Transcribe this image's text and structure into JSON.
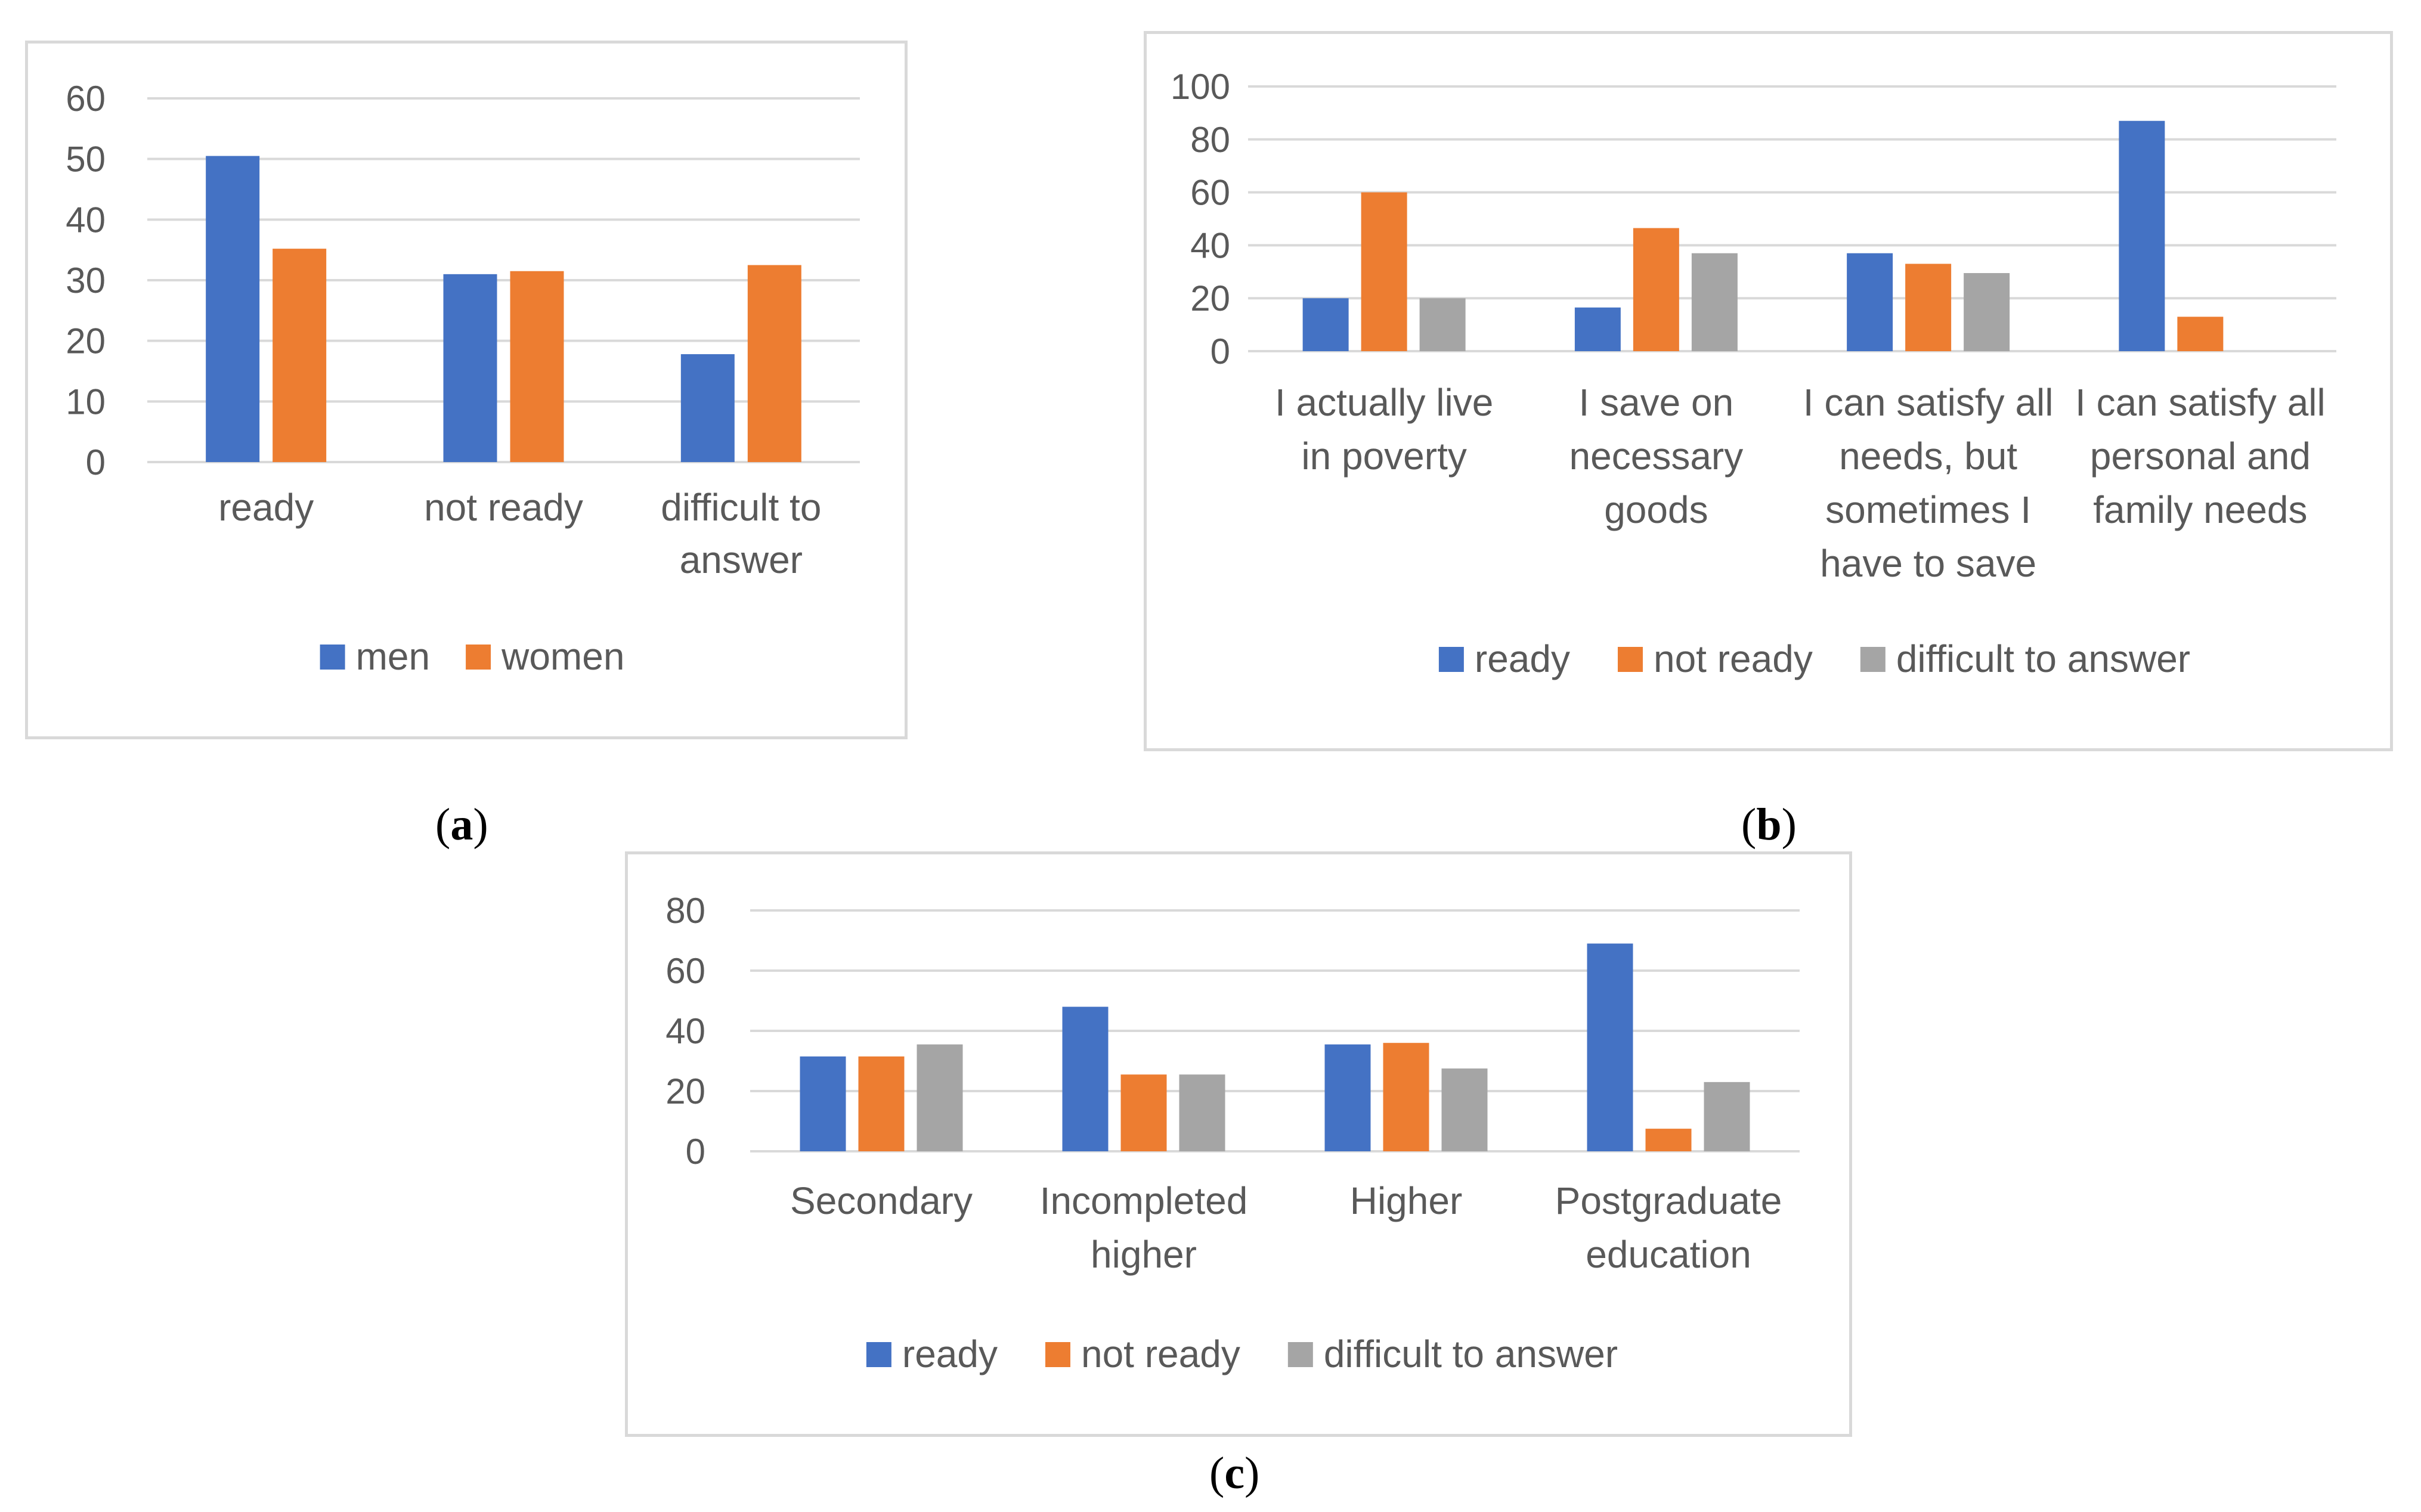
{
  "figure": {
    "captions": [
      {
        "open": "(",
        "letter": "a",
        "close": ")"
      },
      {
        "open": "(",
        "letter": "b",
        "close": ")"
      },
      {
        "open": "(",
        "letter": "c",
        "close": ")"
      }
    ]
  },
  "colors": {
    "series_blue": "#4472c4",
    "series_orange": "#ed7d31",
    "series_gray": "#a5a5a5",
    "gridline": "#d9d9d9",
    "text": "#595959"
  },
  "chart_data": [
    {
      "id": "a",
      "type": "bar",
      "title": "",
      "categories": [
        [
          "ready"
        ],
        [
          "not ready"
        ],
        [
          "difficult to",
          "answer"
        ]
      ],
      "series": [
        {
          "name": "men",
          "values": [
            50.5,
            31,
            17.8
          ]
        },
        {
          "name": "women",
          "values": [
            35.2,
            31.5,
            32.5
          ]
        }
      ],
      "ylim": [
        0,
        60
      ],
      "yticks": [
        0,
        10,
        20,
        30,
        40,
        50,
        60
      ],
      "grid": true,
      "legend": "bottom"
    },
    {
      "id": "b",
      "type": "bar",
      "title": "",
      "categories": [
        [
          "I actually live",
          "in poverty"
        ],
        [
          "I save on",
          "necessary",
          "goods"
        ],
        [
          "I can satisfy all",
          "needs, but",
          "sometimes I",
          "have to save"
        ],
        [
          "I can satisfy all",
          "personal and",
          "family needs"
        ]
      ],
      "series": [
        {
          "name": "ready",
          "values": [
            20,
            16.5,
            37,
            87
          ]
        },
        {
          "name": "not ready",
          "values": [
            60,
            46.5,
            33,
            13
          ]
        },
        {
          "name": "difficult to answer",
          "values": [
            20,
            37,
            29.5,
            0
          ]
        }
      ],
      "ylim": [
        0,
        100
      ],
      "yticks": [
        0,
        20,
        40,
        60,
        80,
        100
      ],
      "grid": true,
      "legend": "bottom"
    },
    {
      "id": "c",
      "type": "bar",
      "title": "",
      "categories": [
        [
          "Secondary"
        ],
        [
          "Incompleted",
          "higher"
        ],
        [
          "Higher"
        ],
        [
          "Postgraduate",
          "education"
        ]
      ],
      "series": [
        {
          "name": "ready",
          "values": [
            31.5,
            48,
            35.5,
            69
          ]
        },
        {
          "name": "not ready",
          "values": [
            31.5,
            25.5,
            36,
            7.5
          ]
        },
        {
          "name": "difficult to answer",
          "values": [
            35.5,
            25.5,
            27.5,
            23
          ]
        }
      ],
      "ylim": [
        0,
        80
      ],
      "yticks": [
        0,
        20,
        40,
        60,
        80
      ],
      "grid": true,
      "legend": "bottom"
    }
  ]
}
